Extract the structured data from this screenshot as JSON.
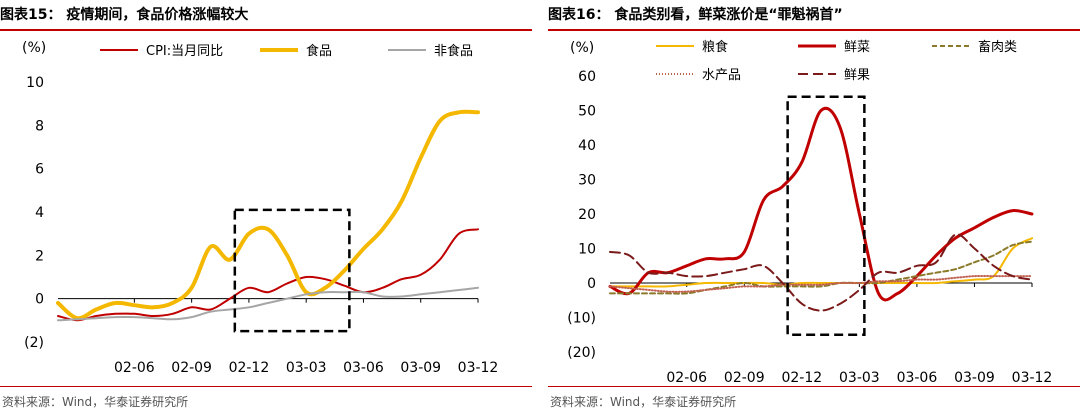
{
  "charts": [
    {
      "title": "图表15：  疫情期间，食品价格涨幅较大",
      "source": "资料来源：Wind，华泰证券研究所",
      "accent_color": "#c00000"
    },
    {
      "title": "图表16：  食品类别看，鲜菜涨价是“罪魁祸首”",
      "source": "资料来源：Wind，华泰证券研究所",
      "accent_color": "#c00000"
    }
  ],
  "chart_data": [
    {
      "type": "line",
      "ylabel": "(%)",
      "ylim": [
        -2,
        10
      ],
      "yticks": [
        -2,
        0,
        2,
        4,
        6,
        8,
        10
      ],
      "ytick_labels": [
        "(2)",
        "0",
        "2",
        "4",
        "6",
        "8",
        "10"
      ],
      "x": [
        "02-02",
        "02-03",
        "02-04",
        "02-05",
        "02-06",
        "02-07",
        "02-08",
        "02-09",
        "02-10",
        "02-11",
        "02-12",
        "03-01",
        "03-02",
        "03-03",
        "03-04",
        "03-05",
        "03-06",
        "03-07",
        "03-08",
        "03-09",
        "03-10",
        "03-11",
        "03-12"
      ],
      "xtick_labels": [
        "02-06",
        "02-09",
        "02-12",
        "03-03",
        "03-06",
        "03-09",
        "03-12"
      ],
      "legend_position": "top",
      "grid": false,
      "series": [
        {
          "name": "CPI:当月同比",
          "color": "#c00000",
          "width": 2,
          "values": [
            -0.8,
            -1.0,
            -0.8,
            -0.7,
            -0.7,
            -0.8,
            -0.7,
            -0.4,
            -0.5,
            0.0,
            0.5,
            0.3,
            0.7,
            1.0,
            0.9,
            0.6,
            0.3,
            0.5,
            0.9,
            1.1,
            1.8,
            3.0,
            3.2
          ]
        },
        {
          "name": "食品",
          "color": "#f5b800",
          "width": 4,
          "values": [
            -0.2,
            -0.9,
            -0.5,
            -0.2,
            -0.3,
            -0.4,
            -0.2,
            0.5,
            2.4,
            1.8,
            3.0,
            3.2,
            2.0,
            0.3,
            0.5,
            1.3,
            2.3,
            3.2,
            4.5,
            6.5,
            8.2,
            8.6,
            8.6
          ]
        },
        {
          "name": "非食品",
          "color": "#a6a6a6",
          "width": 2,
          "values": [
            -1.0,
            -0.95,
            -0.9,
            -0.85,
            -0.85,
            -0.9,
            -0.95,
            -0.85,
            -0.6,
            -0.5,
            -0.4,
            -0.2,
            0.0,
            0.2,
            0.3,
            0.3,
            0.3,
            0.1,
            0.1,
            0.2,
            0.3,
            0.4,
            0.5
          ]
        }
      ],
      "highlight_box": {
        "x_from": "02-11",
        "x_to": "03-05",
        "y_from": -1.5,
        "y_to": 4.1
      }
    },
    {
      "type": "line",
      "ylabel": "(%)",
      "ylim": [
        -20,
        60
      ],
      "yticks": [
        -20,
        -10,
        0,
        10,
        20,
        30,
        40,
        50,
        60
      ],
      "ytick_labels": [
        "(20)",
        "(10)",
        "0",
        "10",
        "20",
        "30",
        "40",
        "50",
        "60"
      ],
      "x": [
        "02-02",
        "02-03",
        "02-04",
        "02-05",
        "02-06",
        "02-07",
        "02-08",
        "02-09",
        "02-10",
        "02-11",
        "02-12",
        "03-01",
        "03-02",
        "03-03",
        "03-04",
        "03-05",
        "03-06",
        "03-07",
        "03-08",
        "03-09",
        "03-10",
        "03-11",
        "03-12"
      ],
      "xtick_labels": [
        "02-06",
        "02-09",
        "02-12",
        "03-03",
        "03-06",
        "03-09",
        "03-12"
      ],
      "legend_position": "top",
      "grid": false,
      "series": [
        {
          "name": "粮食",
          "color": "#f5b800",
          "width": 2,
          "dash": "",
          "values": [
            -1,
            -1,
            -1,
            -1,
            -0.5,
            0,
            0,
            0,
            0,
            -0.5,
            0,
            0,
            0,
            0,
            0,
            0,
            0,
            0,
            0.5,
            1,
            2,
            10,
            13
          ]
        },
        {
          "name": "鲜菜",
          "color": "#c00000",
          "width": 3,
          "dash": "",
          "values": [
            -1,
            -3,
            3,
            3,
            5,
            7,
            7,
            9,
            24,
            28,
            35,
            50,
            45,
            20,
            -3,
            -3,
            2,
            8,
            13,
            16,
            19,
            21,
            20
          ]
        },
        {
          "name": "畜肉类",
          "color": "#8b7a2b",
          "width": 2,
          "dash": "5,3",
          "values": [
            -3,
            -3,
            -3,
            -3,
            -3,
            -2,
            -1,
            0,
            -1,
            -1,
            -1,
            -1,
            0,
            0,
            0,
            1,
            2,
            3,
            4,
            6,
            8,
            11,
            12
          ]
        },
        {
          "name": "水产品",
          "color": "#c06050",
          "width": 2,
          "dash": "1,2",
          "values": [
            -1,
            -1.5,
            -2,
            -2.5,
            -2.5,
            -2,
            -1.5,
            -1,
            -1,
            -0.5,
            -0.5,
            -0.5,
            0,
            0,
            0.5,
            0.5,
            1,
            1,
            1.5,
            2,
            2,
            2,
            2
          ]
        },
        {
          "name": "鲜果",
          "color": "#7a1a1a",
          "width": 2,
          "dash": "10,5",
          "values": [
            9,
            8,
            3,
            3,
            2,
            2,
            3,
            4,
            5,
            0,
            -6,
            -8,
            -6,
            -2,
            3,
            3,
            5,
            6,
            14,
            10,
            5,
            2,
            1
          ]
        }
      ],
      "highlight_box": {
        "x_from": "02-11",
        "x_to": "03-03",
        "y_from": -15,
        "y_to": 54
      }
    }
  ]
}
